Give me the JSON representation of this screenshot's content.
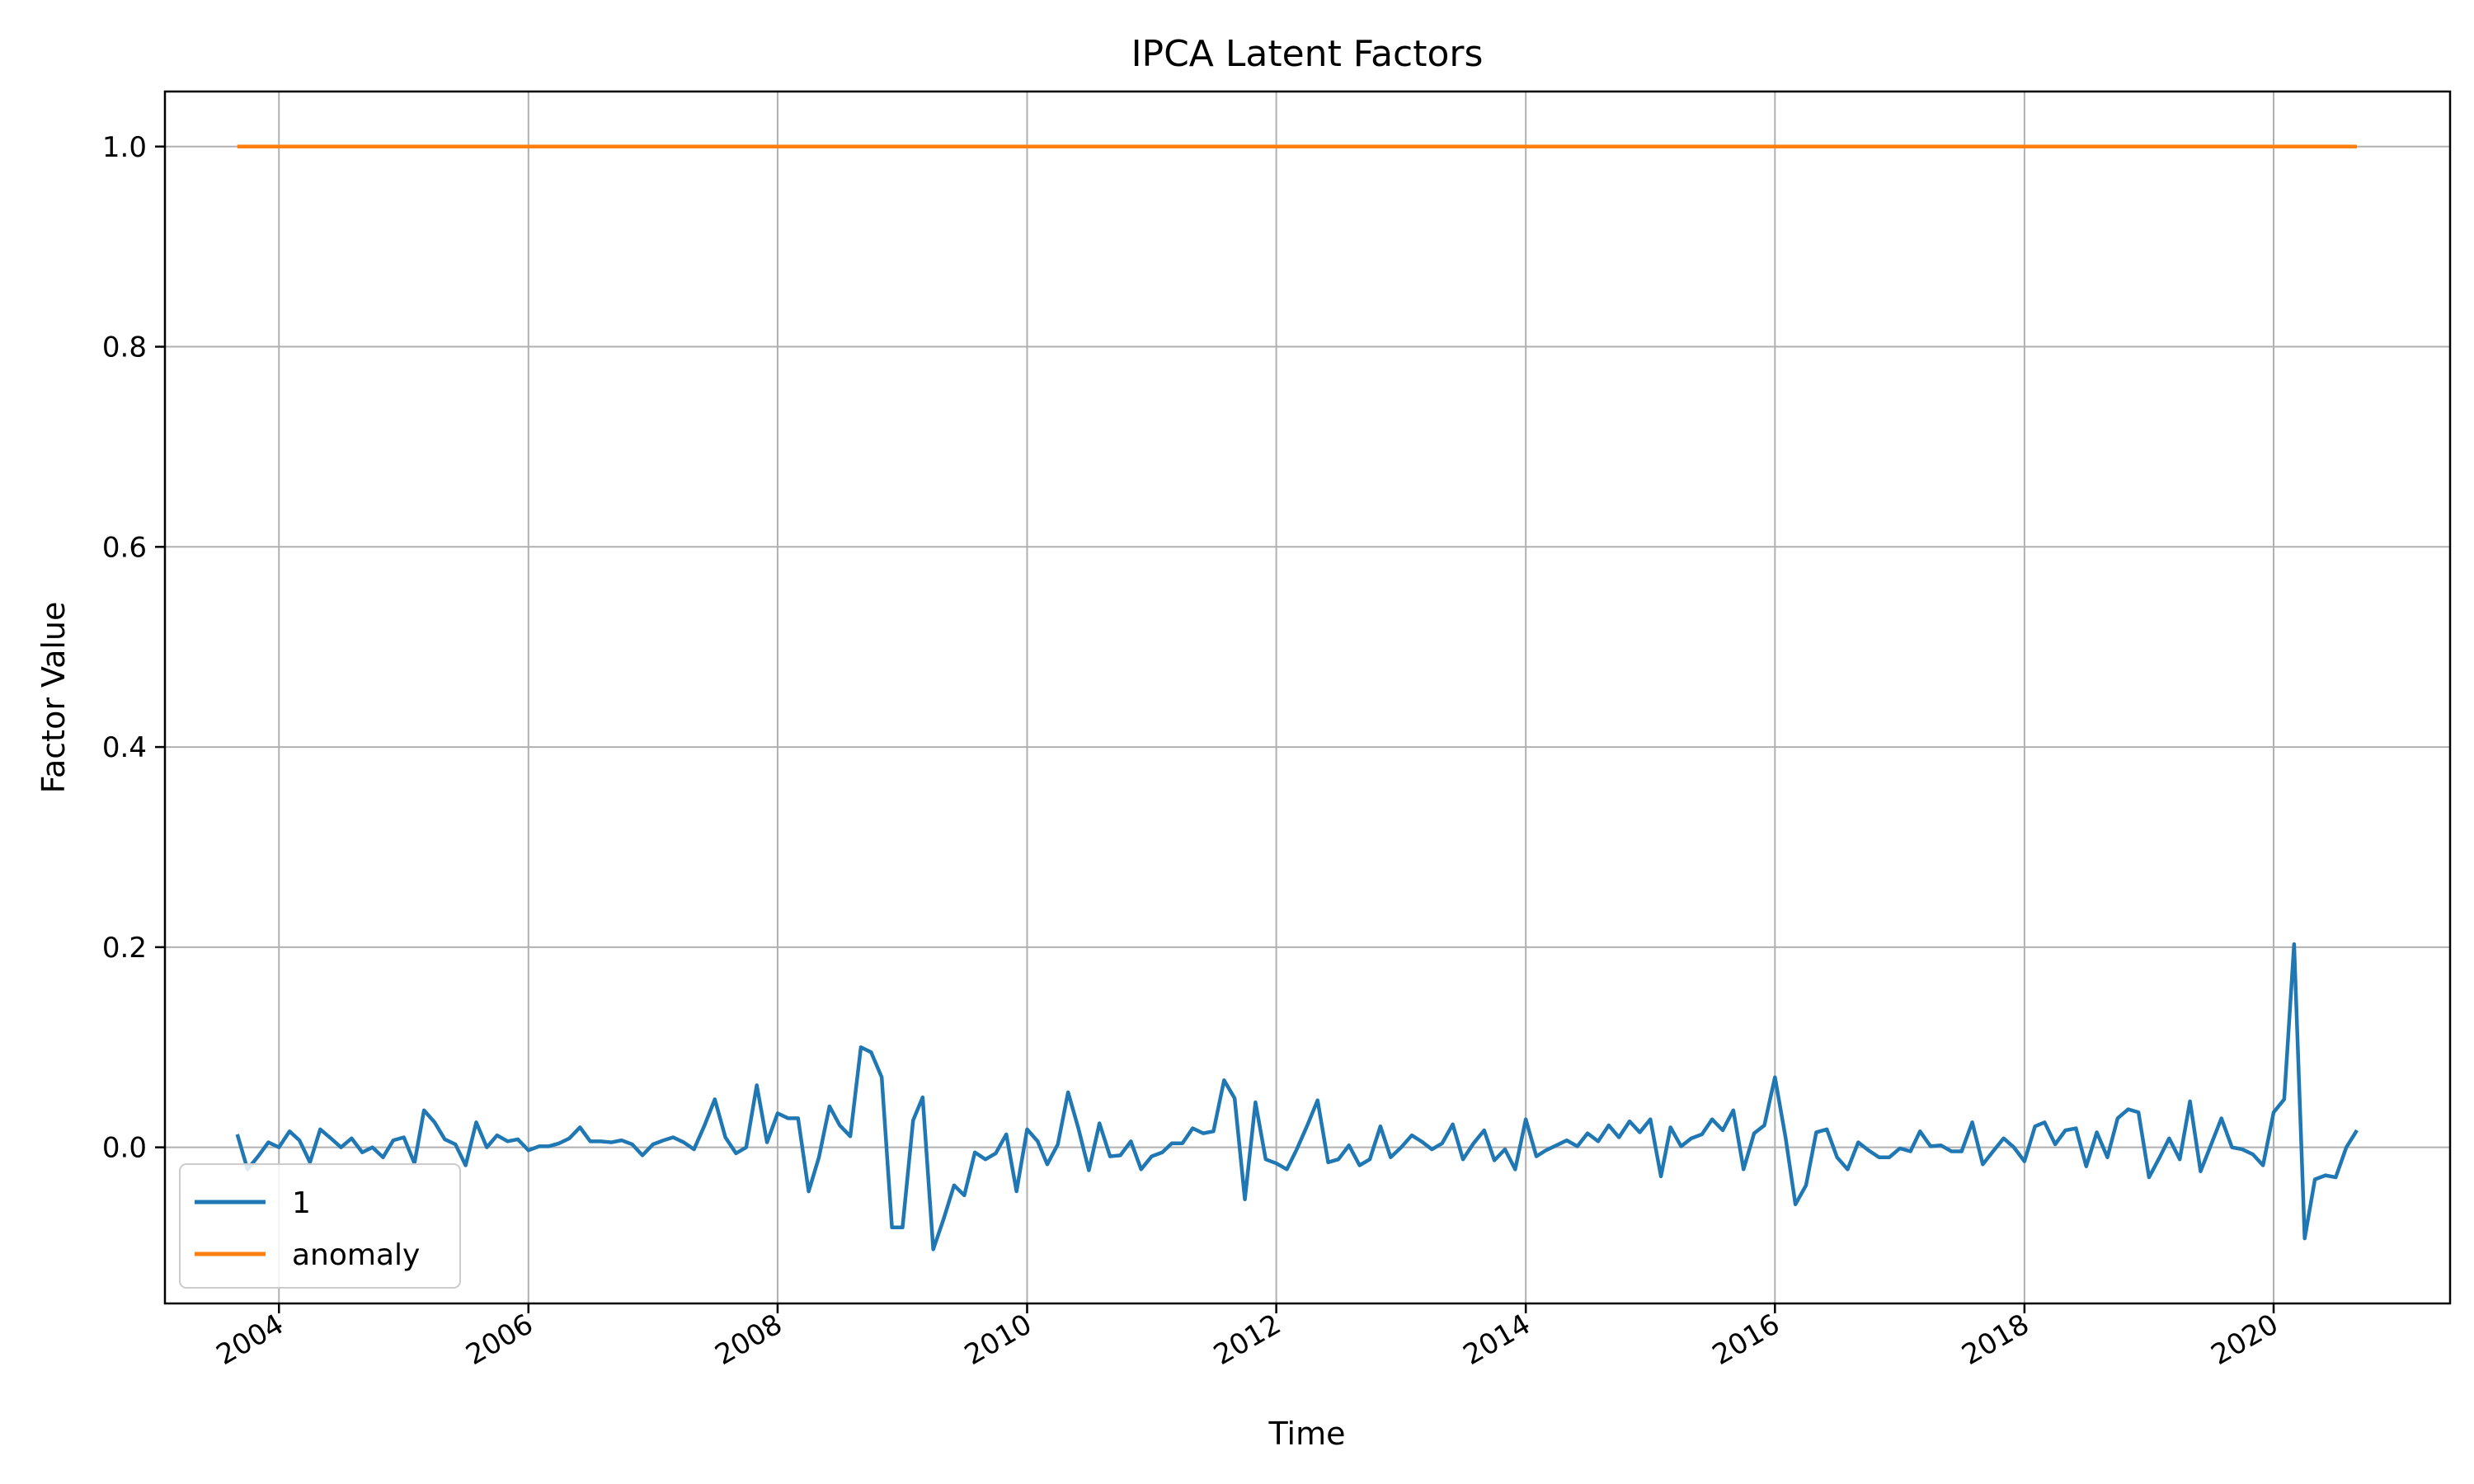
{
  "chart_data": {
    "type": "line",
    "title": "IPCA Latent Factors",
    "xlabel": "Time",
    "ylabel": "Factor Value",
    "xlim": [
      "2003-02-01",
      "2021-06-01"
    ],
    "ylim": [
      -0.156,
      1.055
    ],
    "x_ticks": [
      "2004",
      "2006",
      "2008",
      "2010",
      "2012",
      "2014",
      "2016",
      "2018",
      "2020"
    ],
    "y_ticks": [
      "0.0",
      "0.2",
      "0.4",
      "0.6",
      "0.8",
      "1.0"
    ],
    "grid": true,
    "legend": {
      "placement": "lower-left",
      "entries": [
        "1",
        "anomaly"
      ]
    },
    "colors": {
      "1": "#1f77b4",
      "anomaly": "#ff7f0e"
    },
    "x_start": "2003-09",
    "x_end": "2020-09",
    "x_frequency": "monthly",
    "series": [
      {
        "name": "1",
        "values": [
          0.013,
          -0.022,
          -0.009,
          0.005,
          0.0,
          0.016,
          0.007,
          -0.015,
          0.018,
          0.009,
          0.0,
          0.009,
          -0.005,
          0.0,
          -0.01,
          0.007,
          0.01,
          -0.016,
          0.037,
          0.025,
          0.008,
          0.003,
          -0.018,
          0.025,
          0.0,
          0.012,
          0.006,
          0.008,
          -0.003,
          0.001,
          0.001,
          0.004,
          0.009,
          0.02,
          0.006,
          0.006,
          0.005,
          0.007,
          0.003,
          -0.008,
          0.003,
          0.007,
          0.01,
          0.005,
          -0.002,
          0.022,
          0.048,
          0.01,
          -0.006,
          0.0,
          0.062,
          0.005,
          0.034,
          0.029,
          0.029,
          -0.044,
          -0.01,
          0.041,
          0.022,
          0.011,
          0.1,
          0.095,
          0.07,
          -0.08,
          -0.08,
          0.027,
          0.05,
          -0.102,
          -0.072,
          -0.038,
          -0.048,
          -0.005,
          -0.012,
          -0.006,
          0.013,
          -0.044,
          0.018,
          0.006,
          -0.017,
          0.003,
          0.055,
          0.018,
          -0.023,
          0.024,
          -0.009,
          -0.008,
          0.006,
          -0.022,
          -0.009,
          -0.005,
          0.004,
          0.004,
          0.019,
          0.014,
          0.016,
          0.067,
          0.049,
          -0.052,
          0.045,
          -0.012,
          -0.016,
          -0.022,
          -0.002,
          0.022,
          0.047,
          -0.015,
          -0.012,
          0.002,
          -0.018,
          -0.012,
          0.021,
          -0.01,
          0.0,
          0.012,
          0.006,
          -0.002,
          0.004,
          0.023,
          -0.012,
          0.004,
          0.017,
          -0.013,
          -0.002,
          -0.022,
          0.028,
          -0.009,
          -0.003,
          0.002,
          0.007,
          0.001,
          0.014,
          0.006,
          0.022,
          0.01,
          0.026,
          0.015,
          0.028,
          -0.029,
          0.02,
          0.001,
          0.009,
          0.013,
          0.028,
          0.017,
          0.037,
          -0.022,
          0.014,
          0.022,
          0.07,
          0.01,
          -0.057,
          -0.038,
          0.015,
          0.018,
          -0.01,
          -0.022,
          0.005,
          -0.003,
          -0.01,
          -0.01,
          -0.001,
          -0.004,
          0.016,
          0.001,
          0.002,
          -0.004,
          -0.004,
          0.025,
          -0.017,
          -0.004,
          0.009,
          0.0,
          -0.014,
          0.021,
          0.025,
          0.003,
          0.017,
          0.019,
          -0.019,
          0.015,
          -0.01,
          0.029,
          0.038,
          0.035,
          -0.03,
          -0.01,
          0.009,
          -0.012,
          0.046,
          -0.024,
          0.002,
          0.029,
          0.0,
          -0.002,
          -0.007,
          -0.018,
          0.035,
          0.048,
          0.203,
          -0.091,
          -0.032,
          -0.028,
          -0.03,
          0.0,
          0.017
        ]
      },
      {
        "name": "anomaly",
        "constant_value": 1.0
      }
    ]
  }
}
